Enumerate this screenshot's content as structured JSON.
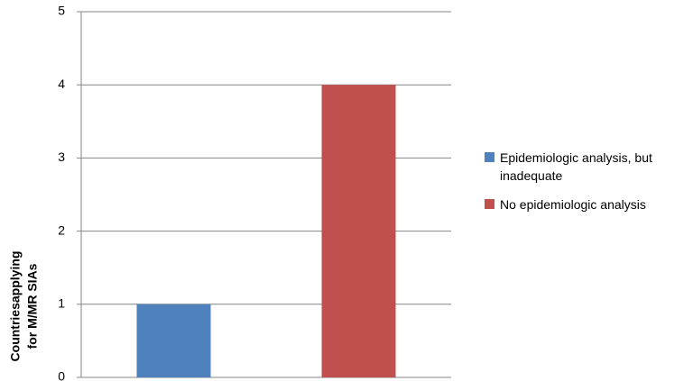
{
  "chart_data": {
    "type": "bar",
    "y_label": [
      "Countriesapplying",
      "for M/MR SIAs"
    ],
    "categories": [
      null,
      null
    ],
    "series": [
      {
        "name": "Epidemiologic analysis, but inadequate",
        "color": "#4f81bd",
        "values": [
          1,
          null
        ]
      },
      {
        "name": "No epidemiologic analysis",
        "color": "#c0504d",
        "values": [
          null,
          4
        ]
      }
    ],
    "ylim": [
      0,
      5
    ],
    "yticks": [
      0,
      1,
      2,
      3,
      4,
      5
    ],
    "grid": true,
    "legend": "right"
  }
}
